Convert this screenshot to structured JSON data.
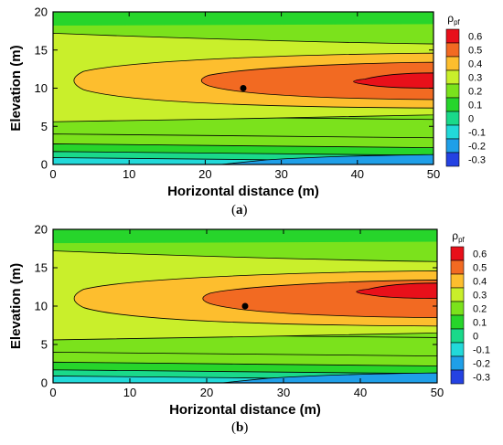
{
  "chart_data": [
    {
      "type": "contour",
      "panel_label": "a",
      "xlabel": "Horizontal distance (m)",
      "ylabel": "Elevation (m)",
      "xlim": [
        0,
        50
      ],
      "ylim": [
        0,
        20
      ],
      "xticks": [
        0,
        10,
        20,
        30,
        40,
        50
      ],
      "yticks": [
        0,
        5,
        10,
        15,
        20
      ],
      "colorbar_title": "ρpf",
      "colorbar_levels": [
        0.6,
        0.5,
        0.4,
        0.3,
        0.2,
        0.1,
        0,
        -0.1,
        -0.2,
        -0.3
      ],
      "marker_point": {
        "x": 25,
        "y": 10
      },
      "contour_levels": [
        -0.2,
        -0.1,
        0,
        0.1,
        0.2,
        0.3,
        0.4,
        0.5,
        0.6
      ],
      "peak_region": {
        "x": 45,
        "y": 11
      }
    },
    {
      "type": "contour",
      "panel_label": "b",
      "xlabel": "Horizontal distance (m)",
      "ylabel": "Elevation (m)",
      "xlim": [
        0,
        50
      ],
      "ylim": [
        0,
        20
      ],
      "xticks": [
        0,
        10,
        20,
        30,
        40,
        50
      ],
      "yticks": [
        0,
        5,
        10,
        15,
        20
      ],
      "colorbar_title": "ρpf",
      "colorbar_levels": [
        0.6,
        0.5,
        0.4,
        0.3,
        0.2,
        0.1,
        0,
        -0.1,
        -0.2,
        -0.3
      ],
      "marker_point": {
        "x": 25,
        "y": 10
      },
      "contour_levels": [
        -0.2,
        -0.1,
        0,
        0.1,
        0.2,
        0.3,
        0.4,
        0.5,
        0.6
      ],
      "peak_region": {
        "x": 46,
        "y": 12
      }
    }
  ],
  "captions": [
    {
      "open": "(",
      "letter": "a",
      "close": ")"
    },
    {
      "open": "(",
      "letter": "b",
      "close": ")"
    }
  ],
  "colorscale": [
    {
      "level": "0.6",
      "color": "#e8101a"
    },
    {
      "level": "0.5",
      "color": "#f26a22"
    },
    {
      "level": "0.4",
      "color": "#fdbe2e"
    },
    {
      "level": "0.3",
      "color": "#c9ef2b"
    },
    {
      "level": "0.2",
      "color": "#7be21c"
    },
    {
      "level": "0.1",
      "color": "#27d52b"
    },
    {
      "level": "0",
      "color": "#1ad98a"
    },
    {
      "level": "-0.1",
      "color": "#22d9d9"
    },
    {
      "level": "-0.2",
      "color": "#1f9fe8"
    },
    {
      "level": "-0.3",
      "color": "#2442e2"
    }
  ]
}
